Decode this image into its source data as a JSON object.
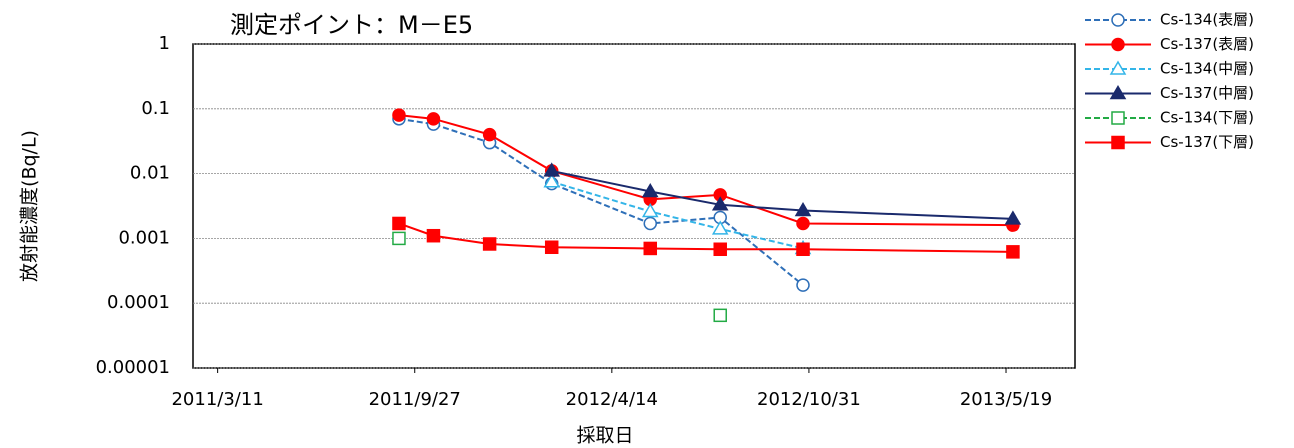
{
  "chart_data": {
    "type": "line",
    "title": "測定ポイント：M－E5",
    "x_label": "採取日",
    "y_label": "放射能濃度(Bq/L)",
    "x": [
      "2011/9/11",
      "2011/10/16",
      "2011/12/12",
      "2012/2/13",
      "2012/5/23",
      "2012/8/2",
      "2012/10/25",
      "2013/5/26"
    ],
    "xlim": [
      "2011/2/14",
      "2013/7/28"
    ],
    "xticks": [
      "2011/3/11",
      "2011/9/27",
      "2012/4/14",
      "2012/10/31",
      "2013/5/19"
    ],
    "ylim": [
      1e-05,
      1
    ],
    "yticks": [
      1e-05,
      0.0001,
      0.001,
      0.01,
      0.1,
      1
    ],
    "log_y": true,
    "grid": true,
    "legend": "right",
    "series": [
      {
        "name": "Cs-134(表層)",
        "color": "#2e6fb8",
        "marker": "circle",
        "filled": false,
        "dashed": true,
        "values": [
          0.07,
          0.058,
          0.03,
          0.007,
          0.0017,
          0.0021,
          0.00019,
          null
        ]
      },
      {
        "name": "Cs-137(表層)",
        "color": "#ff0000",
        "marker": "circle",
        "filled": true,
        "dashed": false,
        "values": [
          0.08,
          0.07,
          0.04,
          0.011,
          0.004,
          0.0047,
          0.0017,
          0.0016
        ]
      },
      {
        "name": "Cs-134(中層)",
        "color": "#33b5e8",
        "marker": "triangle",
        "filled": false,
        "dashed": true,
        "values": [
          null,
          null,
          null,
          0.0075,
          0.0026,
          0.0014,
          0.0007,
          null
        ]
      },
      {
        "name": "Cs-137(中層)",
        "color": "#1a2a6c",
        "marker": "triangle",
        "filled": true,
        "dashed": false,
        "values": [
          null,
          null,
          null,
          0.011,
          0.0053,
          0.0033,
          0.0027,
          0.002
        ]
      },
      {
        "name": "Cs-134(下層)",
        "color": "#22aa44",
        "marker": "square",
        "filled": false,
        "dashed": true,
        "values": [
          0.001,
          null,
          null,
          null,
          null,
          6.5e-05,
          null,
          null
        ]
      },
      {
        "name": "Cs-137(下層)",
        "color": "#ff0000",
        "marker": "square",
        "filled": true,
        "dashed": false,
        "values": [
          0.0017,
          0.0011,
          0.00082,
          0.00073,
          0.0007,
          0.00068,
          0.00068,
          0.00062
        ]
      }
    ]
  }
}
